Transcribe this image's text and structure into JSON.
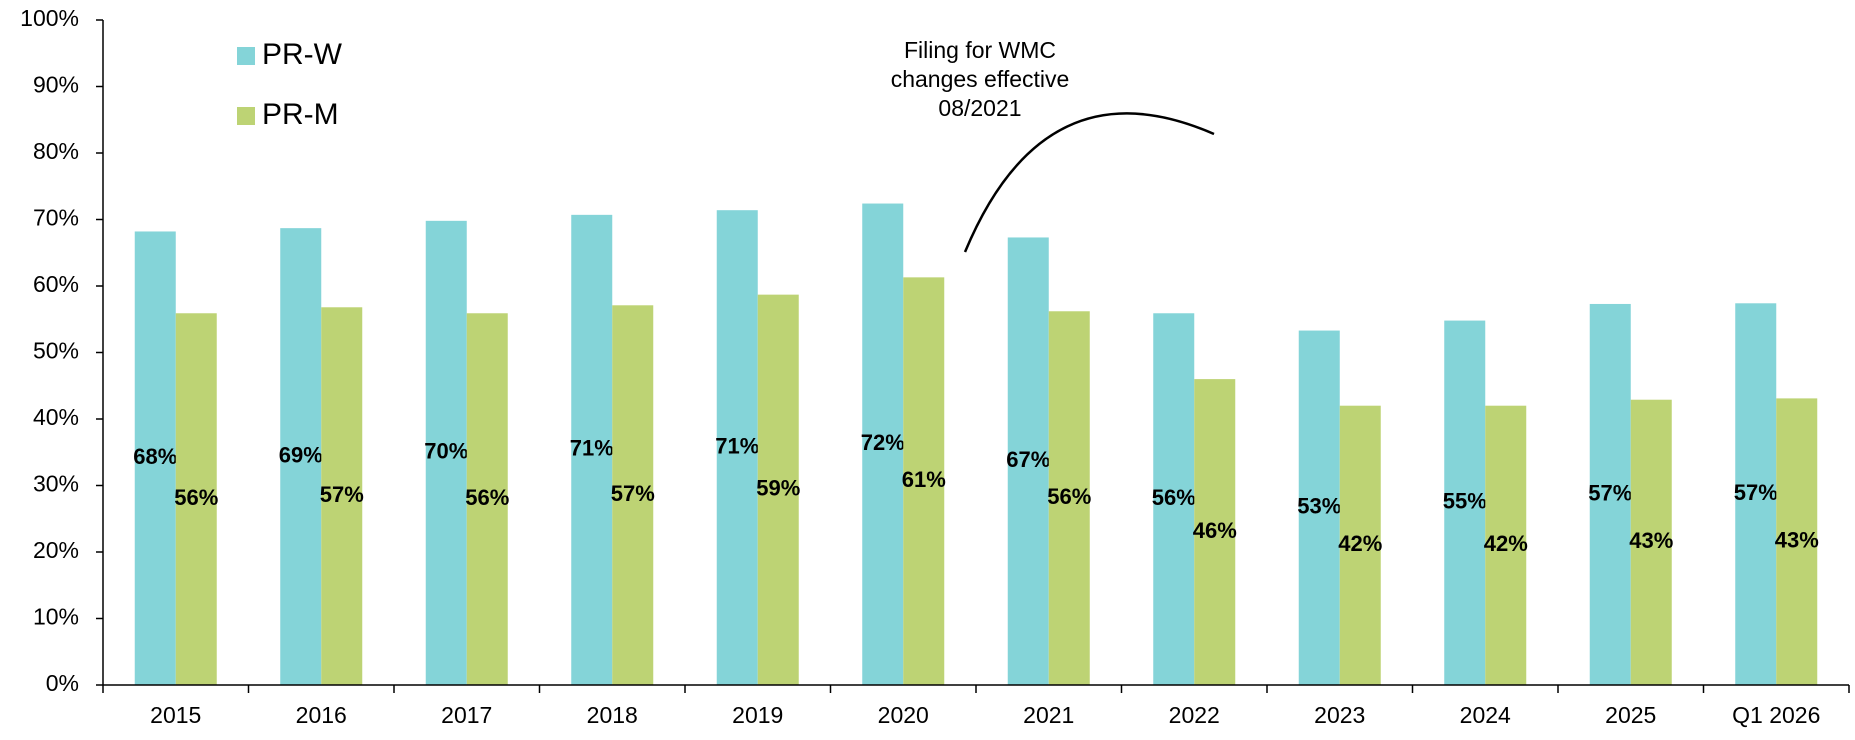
{
  "chart_data": {
    "type": "bar",
    "categories": [
      "2015",
      "2016",
      "2017",
      "2018",
      "2019",
      "2020",
      "2021",
      "2022",
      "2023",
      "2024",
      "2025",
      "Q1 2026"
    ],
    "series": [
      {
        "name": "PR-W",
        "color": "#84d4d8",
        "values": [
          68.2,
          68.7,
          69.8,
          70.7,
          71.4,
          72.4,
          67.3,
          55.9,
          53.3,
          54.8,
          57.3,
          57.4
        ],
        "value_labels": [
          "68%",
          "69%",
          "70%",
          "71%",
          "71%",
          "72%",
          "67%",
          "56%",
          "53%",
          "55%",
          "57%",
          "57%"
        ]
      },
      {
        "name": "PR-M",
        "color": "#bdd374",
        "values": [
          55.9,
          56.8,
          55.9,
          57.1,
          58.7,
          61.3,
          56.2,
          46.0,
          42.0,
          42.0,
          42.9,
          43.1
        ],
        "value_labels": [
          "56%",
          "57%",
          "56%",
          "57%",
          "59%",
          "61%",
          "56%",
          "46%",
          "42%",
          "42%",
          "43%",
          "43%"
        ]
      }
    ],
    "ylim": [
      0,
      100
    ],
    "yticks": [
      {
        "value": 0,
        "label": "0%"
      },
      {
        "value": 10,
        "label": "10%"
      },
      {
        "value": 20,
        "label": "20%"
      },
      {
        "value": 30,
        "label": "30%"
      },
      {
        "value": 40,
        "label": "40%"
      },
      {
        "value": 50,
        "label": "50%"
      },
      {
        "value": 60,
        "label": "60%"
      },
      {
        "value": 70,
        "label": "70%"
      },
      {
        "value": 80,
        "label": "80%"
      },
      {
        "value": 90,
        "label": "90%"
      },
      {
        "value": 100,
        "label": "100%"
      }
    ],
    "grid": false,
    "legend": "upper left",
    "annotation": [
      "Filing for WMC",
      "changes effective",
      "08/2021"
    ]
  }
}
